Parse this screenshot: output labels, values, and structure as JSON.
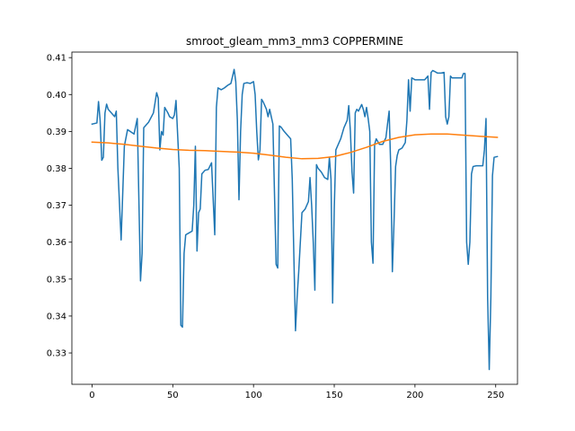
{
  "chart_data": {
    "type": "line",
    "title": "smroot_gleam_mm3_mm3 COPPERMINE",
    "xlabel": "",
    "ylabel": "",
    "xlim": [
      -12.5,
      263.5
    ],
    "ylim": [
      0.3215,
      0.4115
    ],
    "xticks": [
      0,
      50,
      100,
      150,
      200,
      250
    ],
    "yticks": [
      0.33,
      0.34,
      0.35,
      0.36,
      0.37,
      0.38,
      0.39,
      0.4,
      0.41
    ],
    "ytick_labels": [
      "0.33",
      "0.34",
      "0.35",
      "0.36",
      "0.37",
      "0.38",
      "0.39",
      "0.40",
      "0.41"
    ],
    "grid": false,
    "series": [
      {
        "color": "#1f77b4",
        "points": [
          [
            0,
            0.392
          ],
          [
            3,
            0.3923
          ],
          [
            4,
            0.3981
          ],
          [
            5,
            0.393
          ],
          [
            6,
            0.3822
          ],
          [
            7,
            0.383
          ],
          [
            8,
            0.395
          ],
          [
            9,
            0.3974
          ],
          [
            10,
            0.396
          ],
          [
            14,
            0.394
          ],
          [
            15,
            0.3955
          ],
          [
            16,
            0.38
          ],
          [
            18,
            0.3606
          ],
          [
            20,
            0.386
          ],
          [
            22,
            0.3905
          ],
          [
            26,
            0.3893
          ],
          [
            28,
            0.3935
          ],
          [
            30,
            0.3495
          ],
          [
            31,
            0.357
          ],
          [
            32,
            0.391
          ],
          [
            35,
            0.3925
          ],
          [
            38,
            0.395
          ],
          [
            40,
            0.4005
          ],
          [
            41,
            0.399
          ],
          [
            42,
            0.385
          ],
          [
            43,
            0.39
          ],
          [
            44,
            0.389
          ],
          [
            45,
            0.3965
          ],
          [
            47,
            0.395
          ],
          [
            48,
            0.394
          ],
          [
            50,
            0.3935
          ],
          [
            51,
            0.3945
          ],
          [
            52,
            0.3984
          ],
          [
            54,
            0.38
          ],
          [
            55,
            0.3375
          ],
          [
            56,
            0.337
          ],
          [
            57,
            0.357
          ],
          [
            58,
            0.362
          ],
          [
            60,
            0.3625
          ],
          [
            62,
            0.363
          ],
          [
            63,
            0.37
          ],
          [
            64,
            0.386
          ],
          [
            65,
            0.3576
          ],
          [
            66,
            0.368
          ],
          [
            67,
            0.369
          ],
          [
            68,
            0.3785
          ],
          [
            70,
            0.3795
          ],
          [
            72,
            0.3797
          ],
          [
            74,
            0.3815
          ],
          [
            76,
            0.362
          ],
          [
            77,
            0.3965
          ],
          [
            78,
            0.4018
          ],
          [
            80,
            0.4013
          ],
          [
            82,
            0.4018
          ],
          [
            84,
            0.4025
          ],
          [
            86,
            0.403
          ],
          [
            88,
            0.4068
          ],
          [
            89,
            0.4035
          ],
          [
            90,
            0.393
          ],
          [
            91,
            0.3715
          ],
          [
            92,
            0.39
          ],
          [
            93,
            0.4
          ],
          [
            94,
            0.403
          ],
          [
            96,
            0.4032
          ],
          [
            98,
            0.403
          ],
          [
            100,
            0.4035
          ],
          [
            101,
            0.4
          ],
          [
            102,
            0.39
          ],
          [
            103,
            0.3823
          ],
          [
            104,
            0.385
          ],
          [
            105,
            0.3987
          ],
          [
            106,
            0.398
          ],
          [
            108,
            0.396
          ],
          [
            109,
            0.394
          ],
          [
            110,
            0.396
          ],
          [
            112,
            0.392
          ],
          [
            114,
            0.354
          ],
          [
            115,
            0.353
          ],
          [
            116,
            0.3915
          ],
          [
            117,
            0.3912
          ],
          [
            119,
            0.39
          ],
          [
            121,
            0.389
          ],
          [
            123,
            0.388
          ],
          [
            124,
            0.377
          ],
          [
            125,
            0.356
          ],
          [
            126,
            0.336
          ],
          [
            127,
            0.345
          ],
          [
            128,
            0.352
          ],
          [
            130,
            0.368
          ],
          [
            132,
            0.369
          ],
          [
            134,
            0.371
          ],
          [
            135,
            0.3775
          ],
          [
            136,
            0.37
          ],
          [
            137,
            0.36
          ],
          [
            138,
            0.347
          ],
          [
            139,
            0.381
          ],
          [
            140,
            0.38
          ],
          [
            142,
            0.379
          ],
          [
            144,
            0.3775
          ],
          [
            146,
            0.377
          ],
          [
            147,
            0.383
          ],
          [
            148,
            0.377
          ],
          [
            149,
            0.3435
          ],
          [
            150,
            0.369
          ],
          [
            151,
            0.385
          ],
          [
            152,
            0.386
          ],
          [
            154,
            0.388
          ],
          [
            156,
            0.391
          ],
          [
            158,
            0.393
          ],
          [
            159,
            0.397
          ],
          [
            160,
            0.39
          ],
          [
            161,
            0.379
          ],
          [
            162,
            0.3733
          ],
          [
            163,
            0.395
          ],
          [
            164,
            0.396
          ],
          [
            165,
            0.3955
          ],
          [
            167,
            0.3973
          ],
          [
            168,
            0.396
          ],
          [
            169,
            0.394
          ],
          [
            170,
            0.3965
          ],
          [
            171,
            0.3935
          ],
          [
            172,
            0.39
          ],
          [
            173,
            0.36
          ],
          [
            174,
            0.3543
          ],
          [
            175,
            0.3865
          ],
          [
            176,
            0.388
          ],
          [
            178,
            0.3865
          ],
          [
            180,
            0.3865
          ],
          [
            182,
            0.3883
          ],
          [
            183,
            0.392
          ],
          [
            184,
            0.3955
          ],
          [
            185,
            0.38
          ],
          [
            186,
            0.352
          ],
          [
            187,
            0.365
          ],
          [
            188,
            0.3805
          ],
          [
            189,
            0.3835
          ],
          [
            190,
            0.385
          ],
          [
            192,
            0.3855
          ],
          [
            194,
            0.387
          ],
          [
            195,
            0.393
          ],
          [
            196,
            0.404
          ],
          [
            197,
            0.3955
          ],
          [
            198,
            0.4045
          ],
          [
            200,
            0.404
          ],
          [
            202,
            0.404
          ],
          [
            204,
            0.404
          ],
          [
            206,
            0.404
          ],
          [
            208,
            0.405
          ],
          [
            209,
            0.396
          ],
          [
            210,
            0.406
          ],
          [
            211,
            0.4065
          ],
          [
            212,
            0.4063
          ],
          [
            214,
            0.4058
          ],
          [
            216,
            0.4058
          ],
          [
            218,
            0.406
          ],
          [
            219,
            0.394
          ],
          [
            220,
            0.392
          ],
          [
            221,
            0.394
          ],
          [
            222,
            0.405
          ],
          [
            223,
            0.4045
          ],
          [
            225,
            0.4045
          ],
          [
            227,
            0.4045
          ],
          [
            229,
            0.4045
          ],
          [
            230,
            0.4057
          ],
          [
            231,
            0.4057
          ],
          [
            232,
            0.36
          ],
          [
            233,
            0.354
          ],
          [
            234,
            0.36
          ],
          [
            235,
            0.3785
          ],
          [
            236,
            0.3805
          ],
          [
            238,
            0.3807
          ],
          [
            240,
            0.3807
          ],
          [
            242,
            0.3807
          ],
          [
            243,
            0.385
          ],
          [
            244,
            0.3935
          ],
          [
            245,
            0.345
          ],
          [
            246,
            0.3255
          ],
          [
            247,
            0.345
          ],
          [
            248,
            0.378
          ],
          [
            249,
            0.383
          ],
          [
            251,
            0.3832
          ]
        ]
      },
      {
        "color": "#ff7f0e",
        "points": [
          [
            0,
            0.3871
          ],
          [
            10,
            0.3869
          ],
          [
            20,
            0.3865
          ],
          [
            30,
            0.386
          ],
          [
            40,
            0.3855
          ],
          [
            50,
            0.3851
          ],
          [
            60,
            0.3849
          ],
          [
            70,
            0.3848
          ],
          [
            80,
            0.3846
          ],
          [
            90,
            0.3844
          ],
          [
            100,
            0.3841
          ],
          [
            110,
            0.3836
          ],
          [
            120,
            0.383
          ],
          [
            130,
            0.3826
          ],
          [
            140,
            0.3827
          ],
          [
            150,
            0.3832
          ],
          [
            160,
            0.3843
          ],
          [
            170,
            0.3857
          ],
          [
            180,
            0.3873
          ],
          [
            190,
            0.3884
          ],
          [
            200,
            0.3891
          ],
          [
            210,
            0.3893
          ],
          [
            220,
            0.3893
          ],
          [
            230,
            0.389
          ],
          [
            240,
            0.3887
          ],
          [
            251,
            0.3884
          ]
        ]
      }
    ]
  }
}
